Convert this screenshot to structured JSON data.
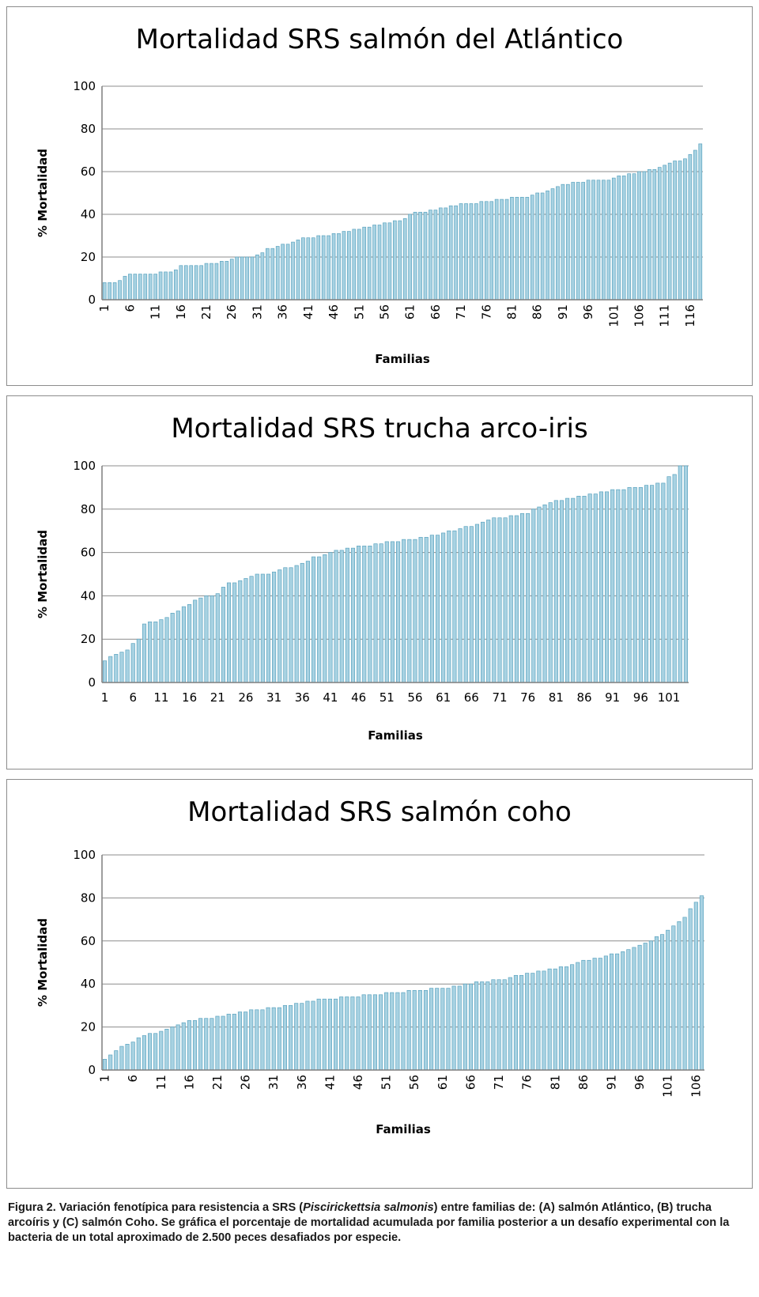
{
  "chart_data": [
    {
      "type": "bar",
      "title": "Mortalidad SRS salmón del Atlántico",
      "ylabel": "% Mortalidad",
      "xlabel": "Familias",
      "ylim": [
        0,
        100
      ],
      "yticks": [
        "0",
        "20",
        "40",
        "60",
        "80",
        "100"
      ],
      "xticks": [
        "1",
        "6",
        "11",
        "16",
        "21",
        "26",
        "31",
        "36",
        "41",
        "46",
        "51",
        "56",
        "61",
        "66",
        "71",
        "76",
        "81",
        "86",
        "91",
        "96",
        "101",
        "106",
        "111",
        "116"
      ],
      "xtick_rotation": "vertical",
      "grid": true,
      "count": 118,
      "values": [
        8,
        8,
        8,
        9,
        11,
        12,
        12,
        12,
        12,
        12,
        12,
        13,
        13,
        13,
        14,
        16,
        16,
        16,
        16,
        16,
        17,
        17,
        17,
        18,
        18,
        19,
        20,
        20,
        20,
        20,
        21,
        22,
        24,
        24,
        25,
        26,
        26,
        27,
        28,
        29,
        29,
        29,
        30,
        30,
        30,
        31,
        31,
        32,
        32,
        33,
        33,
        34,
        34,
        35,
        35,
        36,
        36,
        37,
        37,
        38,
        40,
        41,
        41,
        41,
        42,
        42,
        43,
        43,
        44,
        44,
        45,
        45,
        45,
        45,
        46,
        46,
        46,
        47,
        47,
        47,
        48,
        48,
        48,
        48,
        49,
        50,
        50,
        51,
        52,
        53,
        54,
        54,
        55,
        55,
        55,
        56,
        56,
        56,
        56,
        56,
        57,
        58,
        58,
        59,
        59,
        60,
        60,
        61,
        61,
        62,
        63,
        64,
        65,
        65,
        66,
        68,
        70,
        73
      ]
    },
    {
      "type": "bar",
      "title": "Mortalidad SRS trucha arco-iris",
      "ylabel": "% Mortalidad",
      "xlabel": "Familias",
      "ylim": [
        0,
        100
      ],
      "yticks": [
        "0",
        "20",
        "40",
        "60",
        "80",
        "100"
      ],
      "xticks": [
        "1",
        "6",
        "11",
        "16",
        "21",
        "26",
        "31",
        "36",
        "41",
        "46",
        "51",
        "56",
        "61",
        "66",
        "71",
        "76",
        "81",
        "86",
        "91",
        "96",
        "101"
      ],
      "xtick_rotation": "horizontal",
      "grid": true,
      "count": 104,
      "values": [
        10,
        12,
        13,
        14,
        15,
        18,
        20,
        27,
        28,
        28,
        29,
        30,
        32,
        33,
        35,
        36,
        38,
        39,
        40,
        40,
        41,
        44,
        46,
        46,
        47,
        48,
        49,
        50,
        50,
        50,
        51,
        52,
        53,
        53,
        54,
        55,
        56,
        58,
        58,
        59,
        60,
        61,
        61,
        62,
        62,
        63,
        63,
        63,
        64,
        64,
        65,
        65,
        65,
        66,
        66,
        66,
        67,
        67,
        68,
        68,
        69,
        70,
        70,
        71,
        72,
        72,
        73,
        74,
        75,
        76,
        76,
        76,
        77,
        77,
        78,
        78,
        80,
        81,
        82,
        83,
        84,
        84,
        85,
        85,
        86,
        86,
        87,
        87,
        88,
        88,
        89,
        89,
        89,
        90,
        90,
        90,
        91,
        91,
        92,
        92,
        95,
        96,
        100,
        100
      ]
    },
    {
      "type": "bar",
      "title": "Mortalidad SRS salmón coho",
      "ylabel": "% Mortalidad",
      "xlabel": "Familias",
      "ylim": [
        0,
        100
      ],
      "yticks": [
        "0",
        "20",
        "40",
        "60",
        "80",
        "100"
      ],
      "xticks": [
        "1",
        "6",
        "11",
        "16",
        "21",
        "26",
        "31",
        "36",
        "41",
        "46",
        "51",
        "56",
        "61",
        "66",
        "71",
        "76",
        "81",
        "86",
        "91",
        "96",
        "101",
        "106"
      ],
      "xtick_rotation": "vertical",
      "grid": true,
      "count": 107,
      "values": [
        5,
        7,
        9,
        11,
        12,
        13,
        15,
        16,
        17,
        17,
        18,
        19,
        20,
        21,
        22,
        23,
        23,
        24,
        24,
        24,
        25,
        25,
        26,
        26,
        27,
        27,
        28,
        28,
        28,
        29,
        29,
        29,
        30,
        30,
        31,
        31,
        32,
        32,
        33,
        33,
        33,
        33,
        34,
        34,
        34,
        34,
        35,
        35,
        35,
        35,
        36,
        36,
        36,
        36,
        37,
        37,
        37,
        37,
        38,
        38,
        38,
        38,
        39,
        39,
        40,
        40,
        41,
        41,
        41,
        42,
        42,
        42,
        43,
        44,
        44,
        45,
        45,
        46,
        46,
        47,
        47,
        48,
        48,
        49,
        50,
        51,
        51,
        52,
        52,
        53,
        54,
        54,
        55,
        56,
        57,
        58,
        59,
        60,
        62,
        63,
        65,
        67,
        69,
        71,
        75,
        78,
        81
      ]
    }
  ],
  "caption": {
    "prefix": "Figura 2. Variación fenotípica para resistencia a SRS (",
    "italic": "Piscirickettsia salmonis",
    "suffix": ") entre familias de: (A) salmón Atlántico, (B) trucha arcoíris y (C) salmón Coho. Se gráfica el porcentaje de mortalidad acumulada por familia posterior a un desafío experimental con la bacteria de un total aproximado de 2.500 peces desafiados por especie."
  },
  "colors": {
    "bar_fill": "#a8d2e2",
    "bar_edge": "#5aa3bf",
    "grid": "#8c8c8c",
    "axis": "#7f7f7f",
    "border": "#8c8c8c"
  }
}
